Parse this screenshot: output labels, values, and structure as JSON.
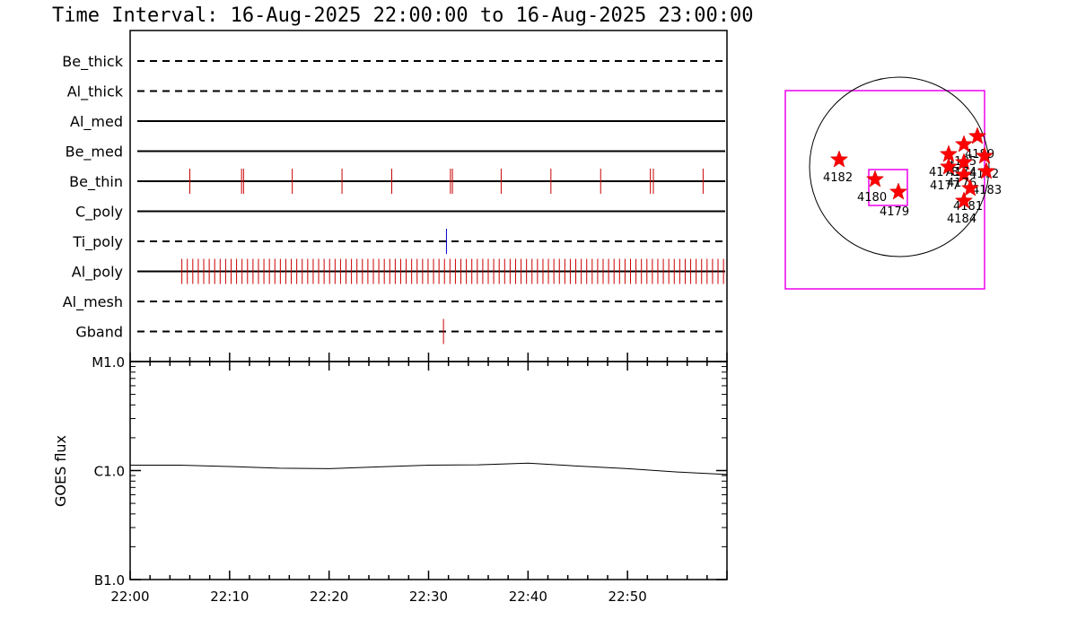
{
  "title": "Time Interval: 16-Aug-2025 22:00:00 to 16-Aug-2025 23:00:00",
  "chart_data": [
    {
      "type": "event-timeline",
      "x_range": [
        "22:00",
        "23:00"
      ],
      "x_unit": "minutes",
      "channels": [
        {
          "name": "Be_thick",
          "style": "dashed",
          "events": []
        },
        {
          "name": "Al_thick",
          "style": "dashed",
          "events": []
        },
        {
          "name": "Al_med",
          "style": "solid",
          "events": []
        },
        {
          "name": "Be_med",
          "style": "solid",
          "events": []
        },
        {
          "name": "Be_thin",
          "style": "solid",
          "event_color": "#cc0000",
          "events": [
            6.0,
            11.2,
            11.4,
            16.3,
            21.3,
            26.3,
            32.2,
            32.4,
            37.3,
            42.3,
            47.3,
            52.3,
            52.6,
            57.6
          ]
        },
        {
          "name": "C_poly",
          "style": "solid",
          "events": []
        },
        {
          "name": "Ti_poly",
          "style": "dashed",
          "event_color": "#0000cc",
          "events": [
            31.8
          ]
        },
        {
          "name": "Al_poly",
          "style": "solid",
          "event_color": "#cc0000",
          "events_regular": {
            "start": 5.2,
            "end": 59.9,
            "step": 0.55
          }
        },
        {
          "name": "Al_mesh",
          "style": "dashed",
          "events": []
        },
        {
          "name": "Gband",
          "style": "dashed",
          "event_color": "#cc0000",
          "events": [
            31.5
          ]
        }
      ]
    },
    {
      "type": "line",
      "ylabel": "GOES flux",
      "yscale": "log",
      "y_ticks": [
        "M1.0",
        "C1.0",
        "B1.0"
      ],
      "x_ticks": [
        "22:00",
        "22:10",
        "22:20",
        "22:30",
        "22:40",
        "22:50"
      ],
      "xlim": [
        0,
        60
      ],
      "series": [
        {
          "x": [
            0,
            5,
            10,
            15,
            20,
            25,
            30,
            35,
            40,
            45,
            50,
            55,
            60
          ],
          "y": [
            1.12e-06,
            1.12e-06,
            1.09e-06,
            1.05e-06,
            1.04e-06,
            1.08e-06,
            1.12e-06,
            1.13e-06,
            1.17e-06,
            1.1e-06,
            1.04e-06,
            9.7e-07,
            9.2e-07
          ]
        }
      ]
    },
    {
      "type": "solar-disk-map",
      "active_regions": [
        {
          "label": "4182"
        },
        {
          "label": "4180"
        },
        {
          "label": "4179"
        },
        {
          "label": "4189"
        },
        {
          "label": "4185"
        },
        {
          "label": "4178"
        },
        {
          "label": "4174"
        },
        {
          "label": "4177"
        },
        {
          "label": "4176"
        },
        {
          "label": "4172"
        },
        {
          "label": "4183"
        },
        {
          "label": "4181"
        },
        {
          "label": "4184"
        }
      ]
    }
  ]
}
